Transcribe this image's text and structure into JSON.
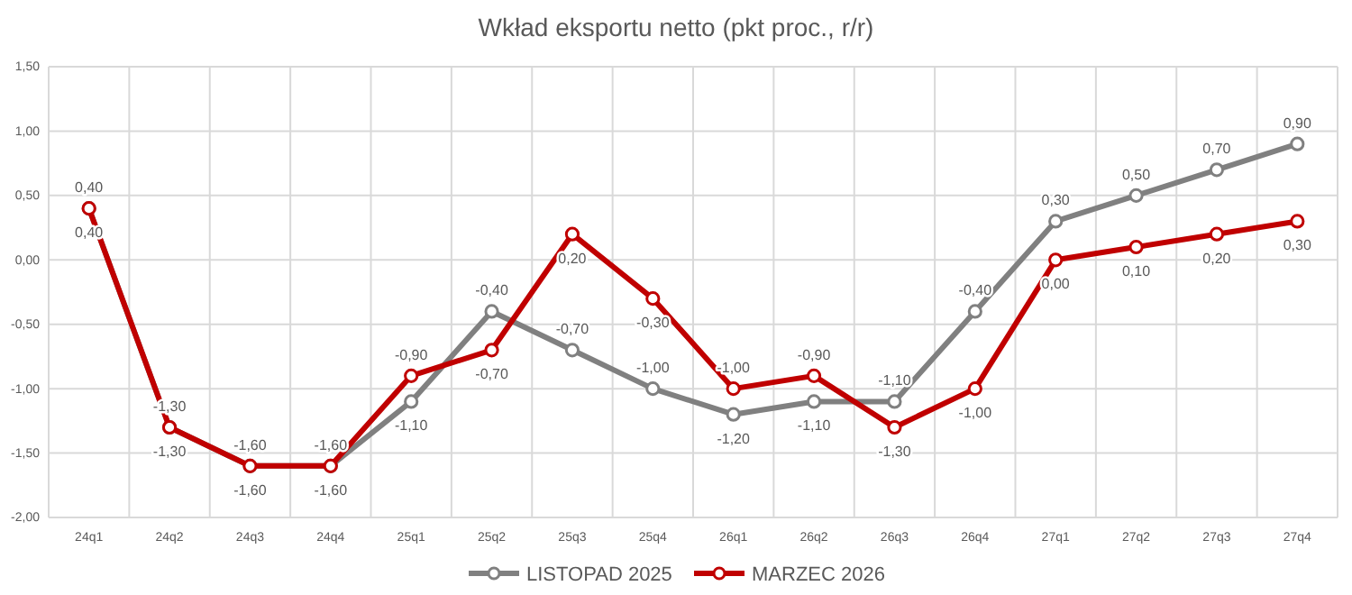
{
  "chart_data": {
    "type": "line",
    "title": "Wkład eksportu netto (pkt proc., r/r)",
    "categories": [
      "24q1",
      "24q2",
      "24q3",
      "24q4",
      "25q1",
      "25q2",
      "25q3",
      "25q4",
      "26q1",
      "26q2",
      "26q3",
      "26q4",
      "27q1",
      "27q2",
      "27q3",
      "27q4"
    ],
    "series": [
      {
        "name": "LISTOPAD 2025",
        "color": "#808080",
        "values": [
          0.4,
          -1.3,
          -1.6,
          -1.6,
          -1.1,
          -0.4,
          -0.7,
          -1.0,
          -1.2,
          -1.1,
          -1.1,
          -0.4,
          0.3,
          0.5,
          0.7,
          0.9
        ],
        "value_labels": [
          "0,40",
          "-1,30",
          "-1,60",
          "-1,60",
          "-1,10",
          "-0,40",
          "-0,70",
          "-1,00",
          "-1,20",
          "-1,10",
          "-1,10",
          "-0,40",
          "0,30",
          "0,50",
          "0,70",
          "0,90"
        ]
      },
      {
        "name": "MARZEC 2026",
        "color": "#c00000",
        "values": [
          0.4,
          -1.3,
          -1.6,
          -1.6,
          -0.9,
          -0.7,
          0.2,
          -0.3,
          -1.0,
          -0.9,
          -1.3,
          -1.0,
          0.0,
          0.1,
          0.2,
          0.3
        ],
        "value_labels": [
          "0,40",
          "-1,30",
          "-1,60",
          "-1,60",
          "-0,90",
          "-0,70",
          "0,20",
          "-0,30",
          "-1,00",
          "-0,90",
          "-1,30",
          "-1,00",
          "0,00",
          "0,10",
          "0,20",
          "0,30"
        ]
      }
    ],
    "ylim": [
      -2,
      1.5
    ],
    "yticks": [
      {
        "value": -2,
        "label": "-2,00"
      },
      {
        "value": -1.5,
        "label": "-1,50"
      },
      {
        "value": -1,
        "label": "-1,00"
      },
      {
        "value": -0.5,
        "label": "-0,50"
      },
      {
        "value": 0,
        "label": "0,00"
      },
      {
        "value": 0.5,
        "label": "0,50"
      },
      {
        "value": 1,
        "label": "1,00"
      },
      {
        "value": 1.5,
        "label": "1,50"
      }
    ],
    "grid": true,
    "legend": "bottom",
    "marker": "circle",
    "line_style": "solid"
  }
}
